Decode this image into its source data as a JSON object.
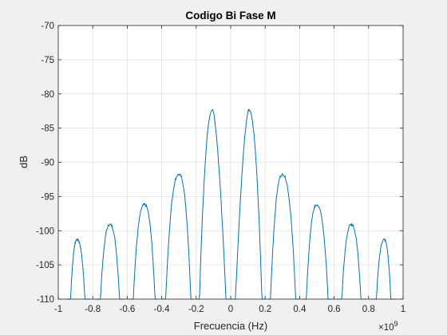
{
  "chart_data": {
    "type": "line",
    "title": "Codigo Bi Fase M",
    "xlabel": "Frecuencia (Hz)",
    "ylabel": "dB",
    "x_exponent_label": "×10",
    "x_exponent_power": "9",
    "xlim": [
      -1,
      1
    ],
    "ylim": [
      -110,
      -70
    ],
    "x_scale_factor": 1000000000,
    "xticks": [
      -1,
      -0.8,
      -0.6,
      -0.4,
      -0.2,
      0,
      0.2,
      0.4,
      0.6,
      0.8,
      1
    ],
    "xtick_labels": [
      "-1",
      "-0.8",
      "-0.6",
      "-0.4",
      "-0.2",
      "0",
      "0.2",
      "0.4",
      "0.6",
      "0.8",
      "1"
    ],
    "yticks": [
      -110,
      -105,
      -100,
      -95,
      -90,
      -85,
      -80,
      -75,
      -70
    ],
    "ytick_labels": [
      "-110",
      "-105",
      "-100",
      "-95",
      "-90",
      "-85",
      "-80",
      "-75",
      "-70"
    ],
    "grid": true,
    "line_color": "#0072bd",
    "lobes": [
      {
        "x_start": -0.955,
        "x_end": -0.815,
        "x_peak": -0.89,
        "peak_db": -101.3
      },
      {
        "x_start": -0.785,
        "x_end": -0.615,
        "x_peak": -0.7,
        "peak_db": -99.1
      },
      {
        "x_start": -0.59,
        "x_end": -0.415,
        "x_peak": -0.5,
        "peak_db": -96.2
      },
      {
        "x_start": -0.395,
        "x_end": -0.215,
        "x_peak": -0.3,
        "peak_db": -91.8
      },
      {
        "x_start": -0.2,
        "x_end": -0.002,
        "x_peak": -0.105,
        "peak_db": -82.3
      },
      {
        "x_start": 0.002,
        "x_end": 0.2,
        "x_peak": 0.105,
        "peak_db": -82.3
      },
      {
        "x_start": 0.215,
        "x_end": 0.395,
        "x_peak": 0.3,
        "peak_db": -91.8
      },
      {
        "x_start": 0.415,
        "x_end": 0.59,
        "x_peak": 0.5,
        "peak_db": -96.2
      },
      {
        "x_start": 0.615,
        "x_end": 0.785,
        "x_peak": 0.7,
        "peak_db": -99.1
      },
      {
        "x_start": 0.815,
        "x_end": 0.955,
        "x_peak": 0.89,
        "peak_db": -101.3
      }
    ]
  }
}
